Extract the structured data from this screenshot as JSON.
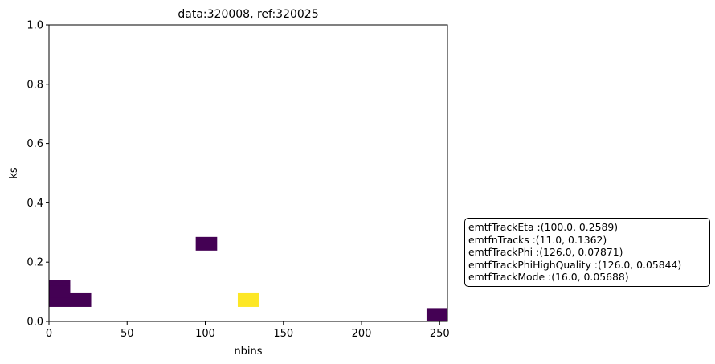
{
  "chart_data": {
    "type": "heatmap",
    "title": "data:320008, ref:320025",
    "xlabel": "nbins",
    "ylabel": "ks",
    "xlim": [
      0,
      255
    ],
    "ylim": [
      0,
      1.0
    ],
    "xticks": [
      0,
      50,
      100,
      150,
      200,
      250
    ],
    "yticks": [
      0.0,
      0.2,
      0.4,
      0.6,
      0.8,
      1.0
    ],
    "xtick_labels": [
      "0",
      "50",
      "100",
      "150",
      "200",
      "250"
    ],
    "ytick_labels": [
      "0.0",
      "0.2",
      "0.4",
      "0.6",
      "0.8",
      "1.0"
    ],
    "colormap": "viridis",
    "cells": [
      {
        "x0": 0,
        "x1": 13.4,
        "y0": 0.12,
        "y1": 0.14,
        "value": 1,
        "color": "#440154"
      },
      {
        "x0": 0,
        "x1": 13.4,
        "y0": 0.1,
        "y1": 0.12,
        "value": 1,
        "color": "#440154"
      },
      {
        "x0": 0,
        "x1": 13.4,
        "y0": 0.08,
        "y1": 0.1,
        "value": 1,
        "color": "#440154"
      },
      {
        "x0": 0,
        "x1": 13.4,
        "y0": 0.06,
        "y1": 0.08,
        "value": 1,
        "color": "#440154"
      },
      {
        "x0": 0,
        "x1": 13.4,
        "y0": 0.05,
        "y1": 0.06,
        "value": 1,
        "color": "#440154"
      },
      {
        "x0": 13.4,
        "x1": 26.8,
        "y0": 0.05,
        "y1": 0.095,
        "value": 1,
        "color": "#440154"
      },
      {
        "x0": 93.9,
        "x1": 107.4,
        "y0": 0.24,
        "y1": 0.285,
        "value": 1,
        "color": "#440154"
      },
      {
        "x0": 120.8,
        "x1": 134.2,
        "y0": 0.05,
        "y1": 0.095,
        "value": 2,
        "color": "#fde725"
      },
      {
        "x0": 241.6,
        "x1": 255,
        "y0": 0,
        "y1": 0.045,
        "value": 1,
        "color": "#440154"
      }
    ],
    "annotation": [
      "emtfTrackEta :(100.0, 0.2589)",
      "emtfnTracks :(11.0, 0.1362)",
      "emtfTrackPhi :(126.0, 0.07871)",
      "emtfTrackPhiHighQuality :(126.0, 0.05844)",
      "emtfTrackMode :(16.0, 0.05688)"
    ]
  }
}
